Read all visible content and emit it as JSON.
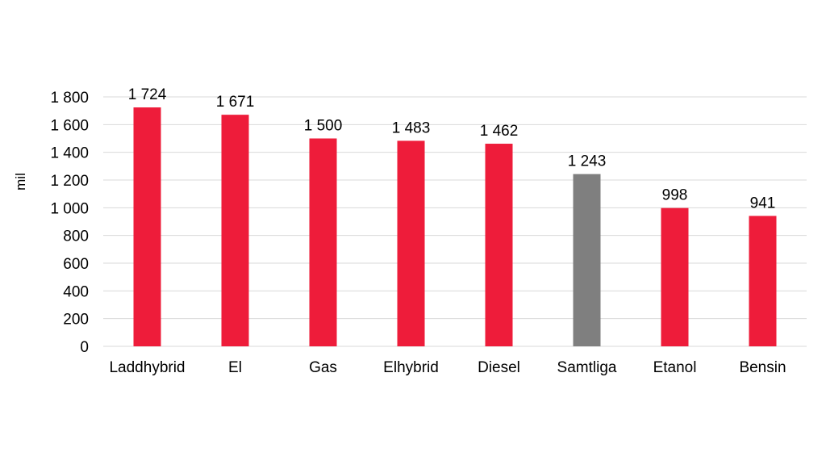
{
  "chart_data": {
    "type": "bar",
    "title": "",
    "xlabel": "",
    "ylabel": "mil",
    "ylim": [
      0,
      1800
    ],
    "yticks": [
      0,
      200,
      400,
      600,
      800,
      1000,
      1200,
      1400,
      1600,
      1800
    ],
    "ytick_labels": [
      "0",
      "200",
      "400",
      "600",
      "800",
      "1 000",
      "1 200",
      "1 400",
      "1 600",
      "1 800"
    ],
    "grid": true,
    "legend": "none",
    "categories": [
      "Laddhybrid",
      "El",
      "Gas",
      "Elhybrid",
      "Diesel",
      "Samtliga",
      "Etanol",
      "Bensin"
    ],
    "values": [
      1724,
      1671,
      1500,
      1483,
      1462,
      1243,
      998,
      941
    ],
    "data_labels": [
      "1 724",
      "1 671",
      "1 500",
      "1 483",
      "1 462",
      "1 243",
      "998",
      "941"
    ],
    "bar_colors": [
      "#ee1c3a",
      "#ee1c3a",
      "#ee1c3a",
      "#ee1c3a",
      "#ee1c3a",
      "#7f7f7f",
      "#ee1c3a",
      "#ee1c3a"
    ],
    "gridline_color": "#d9d9d9"
  }
}
